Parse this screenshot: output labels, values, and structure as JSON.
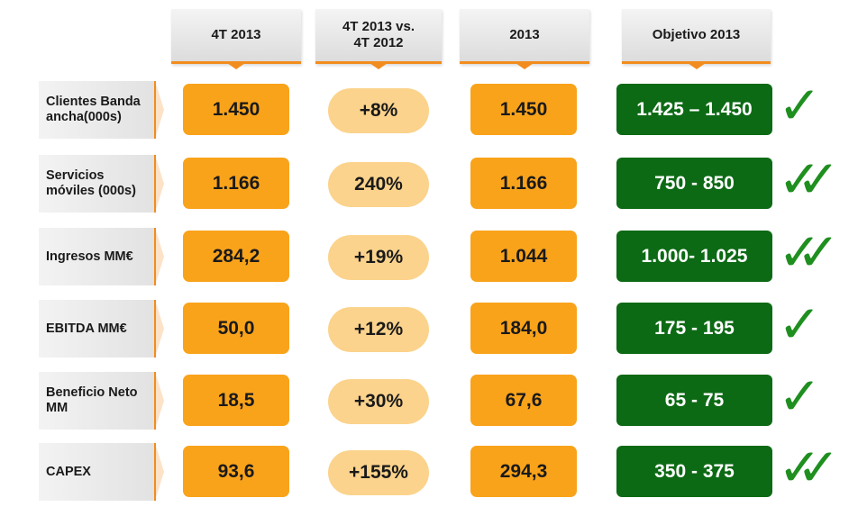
{
  "headers": [
    "4T 2013",
    "4T 2013 vs.\n4T 2012",
    "2013",
    "Objetivo 2013"
  ],
  "rows": [
    {
      "label": "Clientes Banda ancha(000s)",
      "q4": "1.450",
      "yoy": "+8%",
      "year": "1.450",
      "target": "1.425 – 1.450",
      "checks": "✓"
    },
    {
      "label": "Servicios móviles (000s)",
      "q4": "1.166",
      "yoy": "240%",
      "year": "1.166",
      "target": "750 - 850",
      "checks": "✓✓"
    },
    {
      "label": "Ingresos MM€",
      "q4": "284,2",
      "yoy": "+19%",
      "year": "1.044",
      "target": "1.000- 1.025",
      "checks": "✓✓"
    },
    {
      "label": "EBITDA MM€",
      "q4": "50,0",
      "yoy": "+12%",
      "year": "184,0",
      "target": "175 - 195",
      "checks": "✓"
    },
    {
      "label": "Beneficio Neto MM",
      "q4": "18,5",
      "yoy": "+30%",
      "year": "67,6",
      "target": "65 - 75",
      "checks": "✓"
    },
    {
      "label": "CAPEX",
      "q4": "93,6",
      "yoy": "+155%",
      "year": "294,3",
      "target": "350 - 375",
      "checks": "✓✓"
    }
  ],
  "colors": {
    "accent": "#f28c1e",
    "value_box": "#f9a31b",
    "growth_pill": "#fbd38c",
    "target_box": "#0c6a14",
    "check": "#1f8f1f"
  }
}
